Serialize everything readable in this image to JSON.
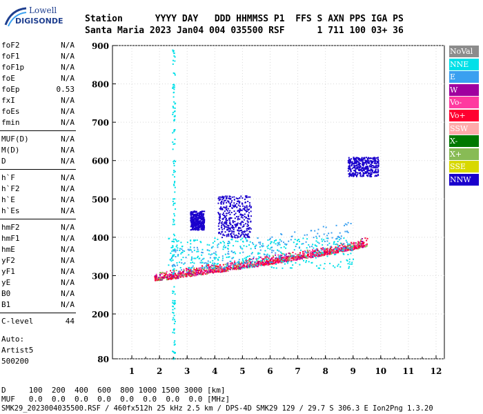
{
  "logo": {
    "line1": "Lowell",
    "line2": "DIGISONDE"
  },
  "header": {
    "line1": "Station      YYYY DAY   DDD HHMMSS P1  FFS S AXN PPS IGA PS",
    "line2": "Santa Maria 2023 Jan04 004 035500 RSF      1 711 100 03+ 36"
  },
  "params": {
    "group1": [
      {
        "name": "foF2",
        "value": "N/A"
      },
      {
        "name": "foF1",
        "value": "N/A"
      },
      {
        "name": "foF1p",
        "value": "N/A"
      },
      {
        "name": "foE",
        "value": "N/A"
      },
      {
        "name": "foEp",
        "value": "0.53"
      },
      {
        "name": "fxI",
        "value": "N/A"
      },
      {
        "name": "foEs",
        "value": "N/A"
      },
      {
        "name": "fmin",
        "value": "N/A"
      }
    ],
    "group2": [
      {
        "name": "MUF(D)",
        "value": "N/A"
      },
      {
        "name": "M(D)",
        "value": "N/A"
      },
      {
        "name": "D",
        "value": "N/A"
      }
    ],
    "group3": [
      {
        "name": "h`F",
        "value": "N/A"
      },
      {
        "name": "h`F2",
        "value": "N/A"
      },
      {
        "name": "h`E",
        "value": "N/A"
      },
      {
        "name": "h`Es",
        "value": "N/A"
      }
    ],
    "group4": [
      {
        "name": "hmF2",
        "value": "N/A"
      },
      {
        "name": "hmF1",
        "value": "N/A"
      },
      {
        "name": "hmE",
        "value": "N/A"
      },
      {
        "name": "yF2",
        "value": "N/A"
      },
      {
        "name": "yF1",
        "value": "N/A"
      },
      {
        "name": "yE",
        "value": "N/A"
      },
      {
        "name": "B0",
        "value": "N/A"
      },
      {
        "name": "B1",
        "value": "N/A"
      }
    ],
    "clevel": {
      "name": "C-level",
      "value": "44"
    }
  },
  "auto": {
    "line1": "Auto:",
    "line2": "Artist5",
    "line3": "500200"
  },
  "legend": [
    {
      "label": "NoVal",
      "color": "#8c8c8c"
    },
    {
      "label": "NNE",
      "color": "#00e0e8"
    },
    {
      "label": "E",
      "color": "#3aa0f0"
    },
    {
      "label": "W",
      "color": "#a0009f"
    },
    {
      "label": "Vo-",
      "color": "#ff3aa0"
    },
    {
      "label": "Vo+",
      "color": "#ff0030"
    },
    {
      "label": "SSW",
      "color": "#ffaaaa"
    },
    {
      "label": "X-",
      "color": "#007800"
    },
    {
      "label": "X+",
      "color": "#88bb55"
    },
    {
      "label": "SSE",
      "color": "#d8d800"
    },
    {
      "label": "NNW",
      "color": "#1a00cc"
    }
  ],
  "bottom": {
    "d_row": "D     100  200  400  600  800 1000 1500 3000 [km]",
    "muf_row": "MUF   0.0  0.0  0.0  0.0  0.0  0.0  0.0  0.0 [MHz]",
    "footer": "SMK29_2023004035500.RSF / 460fx512h 25 kHz 2.5 km / DPS-4D SMK29 129 / 29.7 S 306.3 E Ion2Png 1.3.20"
  },
  "chart_data": {
    "type": "scatter",
    "x_ticks": [
      "1",
      "2",
      "3",
      "4",
      "5",
      "6",
      "7",
      "8",
      "9",
      "10",
      "11",
      "12"
    ],
    "y_ticks": [
      "80",
      "200",
      "300",
      "400",
      "500",
      "600",
      "700",
      "800",
      "900"
    ],
    "xlim": [
      0.3,
      12.3
    ],
    "y_axis_segments": [
      [
        80,
        200
      ],
      [
        200,
        900
      ]
    ],
    "grid": true,
    "trace": {
      "name": "",
      "x": [
        1.8,
        2.5,
        3.0,
        3.5,
        4.0,
        4.5,
        5.0,
        5.5,
        6.0,
        6.5,
        7.0,
        7.5,
        8.0,
        8.5,
        9.0,
        9.5
      ],
      "y": [
        288,
        293,
        299,
        304,
        309,
        314,
        320,
        325,
        331,
        337,
        343,
        349,
        355,
        362,
        369,
        378
      ]
    },
    "clusters": [
      {
        "name": "NNW",
        "x": [
          4.1,
          5.3
        ],
        "y": [
          400,
          510
        ]
      },
      {
        "name": "NNW",
        "x": [
          3.1,
          3.6
        ],
        "y": [
          420,
          470
        ]
      },
      {
        "name": "NNW",
        "x": [
          8.8,
          9.9
        ],
        "y": [
          560,
          610
        ]
      },
      {
        "name": "NNE",
        "x": [
          2.3,
          9.0
        ],
        "y": [
          320,
          400
        ]
      },
      {
        "name": "NNE",
        "x": [
          2.45,
          2.55
        ],
        "y": [
          80,
          900
        ]
      }
    ]
  }
}
